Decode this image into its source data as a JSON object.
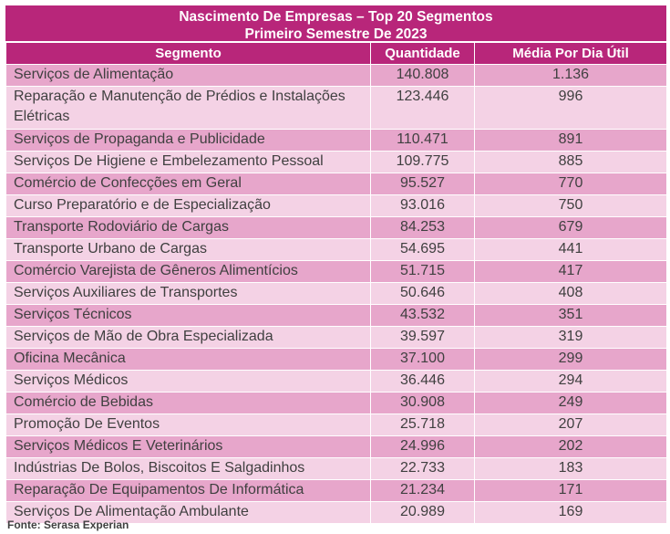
{
  "title_line1": "Nascimento De Empresas – Top 20 Segmentos",
  "title_line2": "Primeiro Semestre De 2023",
  "headers": [
    "Segmento",
    "Quantidade",
    "Média Por Dia Útil"
  ],
  "rows": [
    [
      "Serviços de Alimentação",
      "140.808",
      "1.136"
    ],
    [
      "Reparação e Manutenção de Prédios e Instalações Elétricas",
      "123.446",
      "996"
    ],
    [
      "Serviços de Propaganda e Publicidade",
      "110.471",
      "891"
    ],
    [
      "Serviços De Higiene e Embelezamento Pessoal",
      "109.775",
      "885"
    ],
    [
      "Comércio de Confecções em Geral",
      "95.527",
      "770"
    ],
    [
      "Curso Preparatório e de Especialização",
      "93.016",
      "750"
    ],
    [
      "Transporte Rodoviário de Cargas",
      "84.253",
      "679"
    ],
    [
      "Transporte Urbano de Cargas",
      "54.695",
      "441"
    ],
    [
      "Comércio Varejista de Gêneros Alimentícios",
      "51.715",
      "417"
    ],
    [
      "Serviços Auxiliares de Transportes",
      "50.646",
      "408"
    ],
    [
      "Serviços Técnicos",
      "43.532",
      "351"
    ],
    [
      "Serviços de Mão de Obra Especializada",
      "39.597",
      "319"
    ],
    [
      "Oficina Mecânica",
      "37.100",
      "299"
    ],
    [
      "Serviços Médicos",
      "36.446",
      "294"
    ],
    [
      "Comércio de Bebidas",
      "30.908",
      "249"
    ],
    [
      "Promoção De Eventos",
      "25.718",
      "207"
    ],
    [
      "Serviços Médicos E Veterinários",
      "24.996",
      "202"
    ],
    [
      "Indústrias De Bolos, Biscoitos E Salgadinhos",
      "22.733",
      "183"
    ],
    [
      "Reparação De Equipamentos De Informática",
      "21.234",
      "171"
    ],
    [
      "Serviços De Alimentação Ambulante",
      "20.989",
      "169"
    ]
  ],
  "source": "Fonte: Serasa Experian",
  "colors": {
    "header": "#b8267a",
    "row_dark": "#e7a6cb",
    "row_light": "#f4d2e5"
  }
}
